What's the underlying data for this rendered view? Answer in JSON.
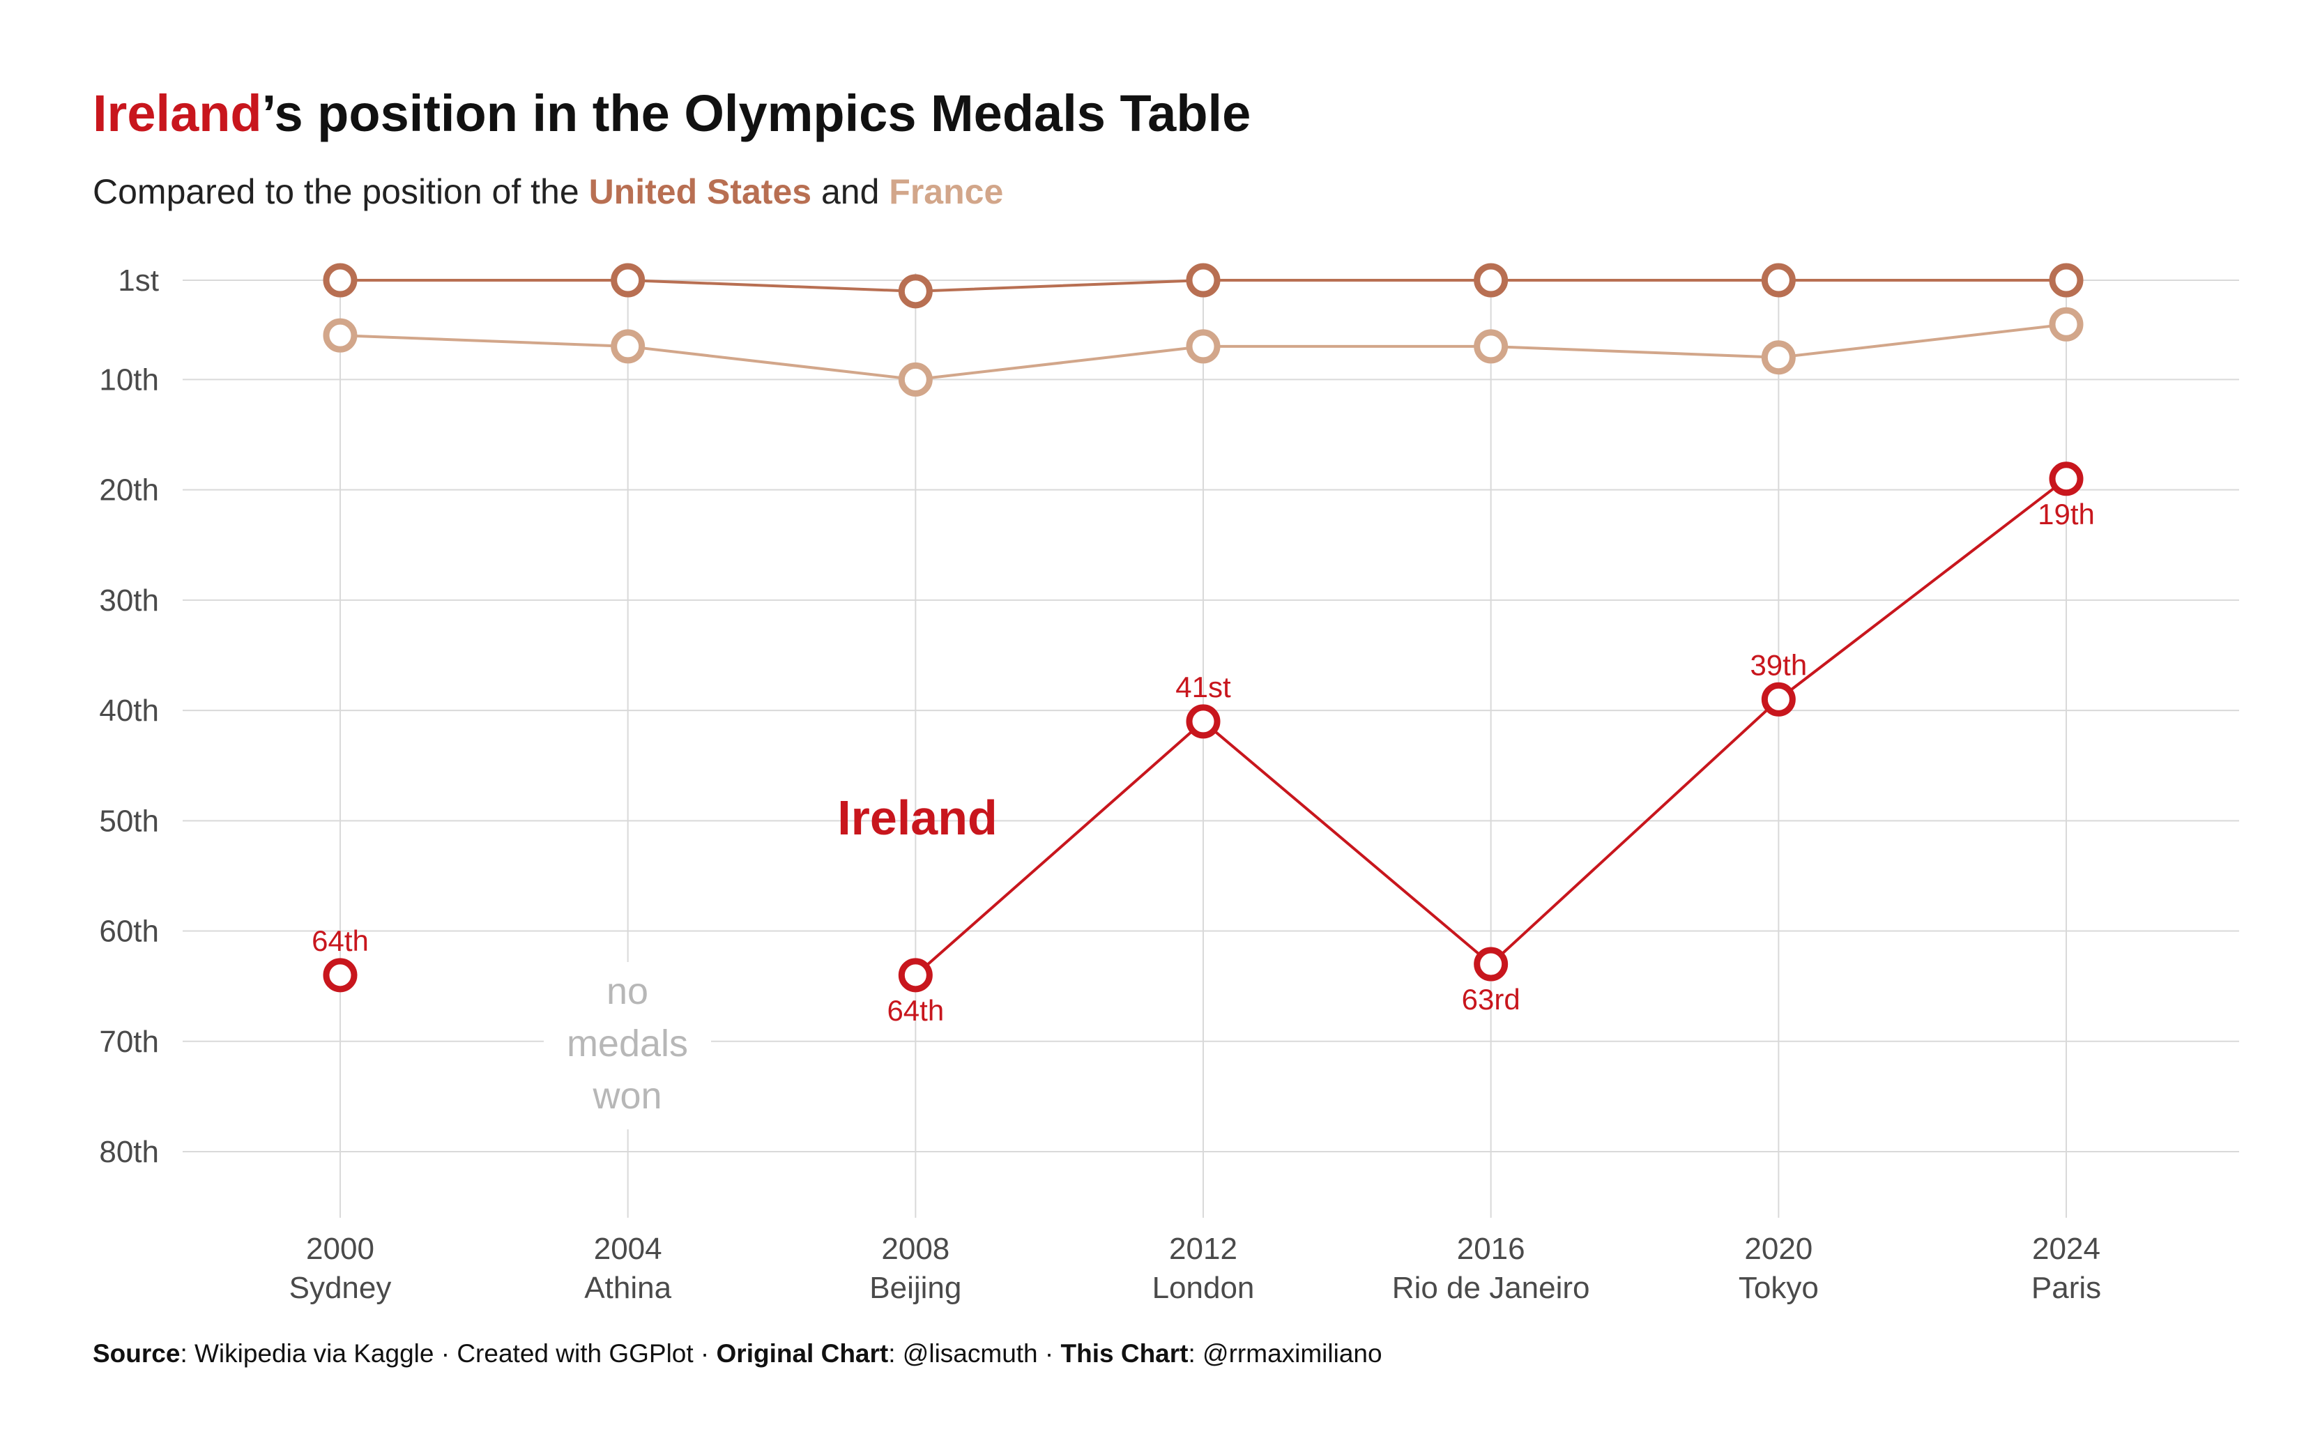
{
  "title": {
    "highlight": "Ireland",
    "rest": "’s position in the Olympics Medals Table"
  },
  "subtitle": {
    "pre": "Compared to the position of the ",
    "us": "United States",
    "mid": " and ",
    "fr": "France"
  },
  "colors": {
    "ireland": "#c8161d",
    "us": "#b86f52",
    "france": "#d2a68a",
    "grid": "#d9d9d9",
    "no_medals": "#b7b7b7"
  },
  "caption": {
    "source_label": "Source",
    "source_text": ": Wikipedia via Kaggle · Created with GGPlot · ",
    "original_label": "Original Chart",
    "original_text": ": @lisacmuth · ",
    "this_label": "This Chart",
    "this_text": ": @rrmaximiliano"
  },
  "annotation": {
    "series_label": "Ireland",
    "no_medals": [
      "no",
      "medals",
      "won"
    ]
  },
  "chart_data": {
    "type": "line",
    "y_reversed": true,
    "ylim": [
      1,
      86
    ],
    "y_ticks": [
      {
        "value": 1,
        "label": "1st"
      },
      {
        "value": 10,
        "label": "10th"
      },
      {
        "value": 20,
        "label": "20th"
      },
      {
        "value": 30,
        "label": "30th"
      },
      {
        "value": 40,
        "label": "40th"
      },
      {
        "value": 50,
        "label": "50th"
      },
      {
        "value": 60,
        "label": "60th"
      },
      {
        "value": 70,
        "label": "70th"
      },
      {
        "value": 80,
        "label": "80th"
      }
    ],
    "x": [
      2000,
      2004,
      2008,
      2012,
      2016,
      2020,
      2024
    ],
    "x_labels": [
      {
        "year": "2000",
        "city": "Sydney"
      },
      {
        "year": "2004",
        "city": "Athina"
      },
      {
        "year": "2008",
        "city": "Beijing"
      },
      {
        "year": "2012",
        "city": "London"
      },
      {
        "year": "2016",
        "city": "Rio de Janeiro"
      },
      {
        "year": "2020",
        "city": "Tokyo"
      },
      {
        "year": "2024",
        "city": "Paris"
      }
    ],
    "series": [
      {
        "name": "United States",
        "color": "#b86f52",
        "values": [
          1,
          1,
          2,
          1,
          1,
          1,
          1
        ]
      },
      {
        "name": "France",
        "color": "#d2a68a",
        "values": [
          6,
          7,
          10,
          7,
          7,
          8,
          5
        ]
      },
      {
        "name": "Ireland",
        "color": "#c8161d",
        "values": [
          64,
          null,
          64,
          41,
          63,
          39,
          19
        ],
        "labels": [
          "64th",
          null,
          "64th",
          "41st",
          "63rd",
          "39th",
          "19th"
        ],
        "label_pos": [
          "above",
          null,
          "below",
          "above",
          "below",
          "above",
          "below"
        ]
      }
    ]
  }
}
